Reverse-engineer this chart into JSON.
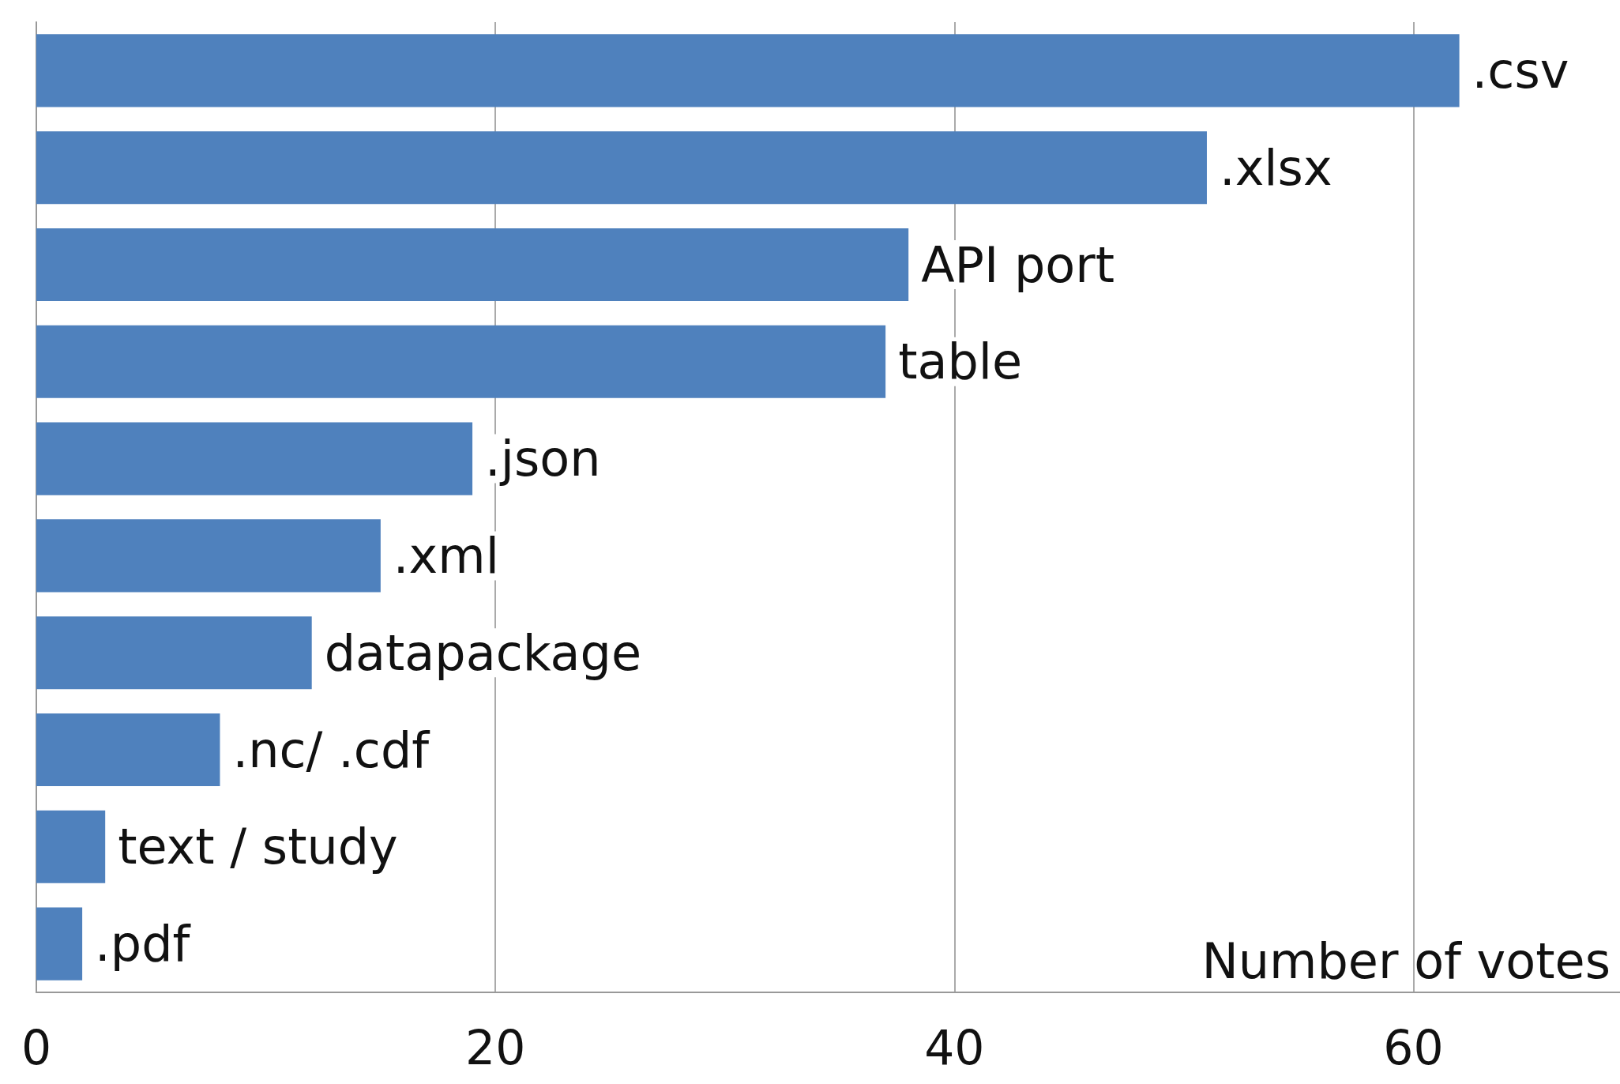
{
  "chart_data": {
    "type": "bar",
    "orientation": "horizontal",
    "xlabel": "Number of votes",
    "categories": [
      ".csv",
      ".xlsx",
      "API port",
      "table",
      ".json",
      ".xml",
      "datapackage",
      ".nc/ .cdf",
      "text / study",
      ".pdf"
    ],
    "values": [
      62,
      51,
      38,
      37,
      19,
      15,
      12,
      8,
      3,
      2
    ],
    "color": "#4f81bd",
    "xlim": [
      0,
      69
    ],
    "xticks": [
      0,
      20,
      40,
      60
    ],
    "grid": "x",
    "tick_labels": "x"
  }
}
